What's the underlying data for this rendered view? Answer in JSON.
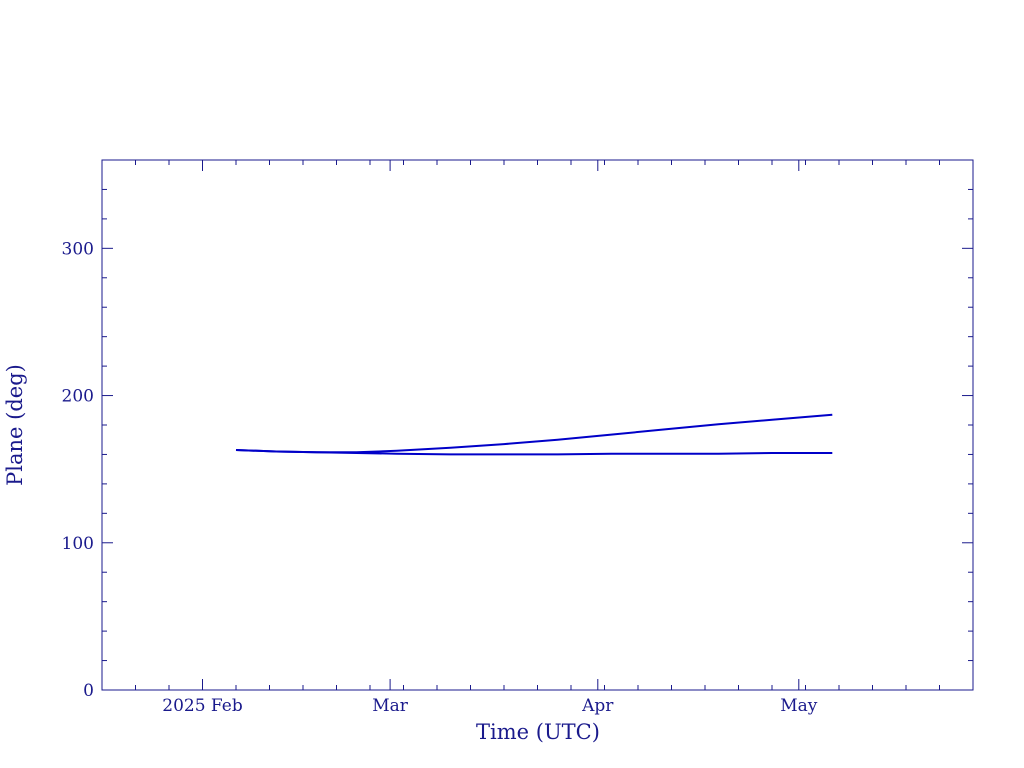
{
  "colors": {
    "axis": "#1a1a8c",
    "series": "#0000c8",
    "background": "#ffffff"
  },
  "chart_data": {
    "type": "line",
    "title": "",
    "xlabel": "Time (UTC)",
    "ylabel": "Plane (deg)",
    "x_axis_type": "date",
    "xlim": [
      "2025-01-17",
      "2025-05-27"
    ],
    "ylim": [
      0,
      360
    ],
    "yticks_major": [
      0,
      100,
      200,
      300
    ],
    "yticks_labels": [
      "0",
      "100",
      "200",
      "300"
    ],
    "xticks_major": [
      "2025-02-01",
      "2025-03-01",
      "2025-04-01",
      "2025-05-01"
    ],
    "xticks_labels": [
      "2025 Feb",
      "Mar",
      "Apr",
      "May"
    ],
    "grid": false,
    "legend": "none",
    "series": [
      {
        "x": [
          "2025-02-06",
          "2025-02-12",
          "2025-02-18",
          "2025-02-24",
          "2025-03-02",
          "2025-03-10",
          "2025-03-18",
          "2025-03-26",
          "2025-04-03",
          "2025-04-11",
          "2025-04-19",
          "2025-04-27",
          "2025-05-06"
        ],
        "y": [
          163,
          162,
          161.5,
          161.5,
          162.5,
          164.5,
          167,
          170,
          173.5,
          177,
          180.5,
          183.5,
          187
        ]
      },
      {
        "x": [
          "2025-02-06",
          "2025-02-12",
          "2025-02-18",
          "2025-02-24",
          "2025-03-02",
          "2025-03-10",
          "2025-03-18",
          "2025-03-26",
          "2025-04-03",
          "2025-04-11",
          "2025-04-19",
          "2025-04-27",
          "2025-05-06"
        ],
        "y": [
          163,
          162,
          161.5,
          161,
          160.5,
          160,
          160,
          160,
          160.5,
          160.5,
          160.5,
          161,
          161
        ]
      }
    ]
  }
}
